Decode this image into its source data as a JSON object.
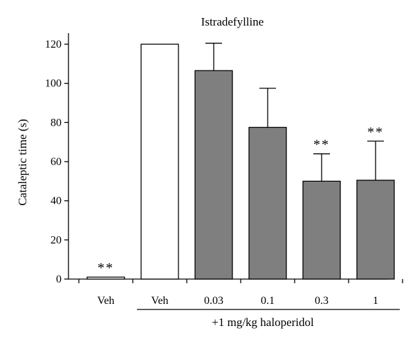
{
  "chart_data": {
    "type": "bar",
    "title": "Istradefylline",
    "ylabel": "Cataleptic time (s)",
    "xlabel": "",
    "ylim": [
      0,
      120
    ],
    "yticks": [
      0,
      20,
      40,
      60,
      80,
      100,
      120
    ],
    "categories": [
      "Veh",
      "Veh",
      "0.03",
      "0.1",
      "0.3",
      "1"
    ],
    "values": [
      1,
      120,
      106.5,
      77.5,
      50,
      50.5
    ],
    "error_upper": [
      0,
      0,
      120.5,
      97.5,
      64,
      70.5
    ],
    "significance": [
      "**",
      "",
      "",
      "",
      "**",
      "**"
    ],
    "fills": [
      "#ffffff",
      "#ffffff",
      "#7f7f7f",
      "#7f7f7f",
      "#7f7f7f",
      "#7f7f7f"
    ],
    "group_label": "+1 mg/kg haloperidol",
    "group_range": [
      1,
      5
    ],
    "grid": false,
    "legend": "none"
  }
}
